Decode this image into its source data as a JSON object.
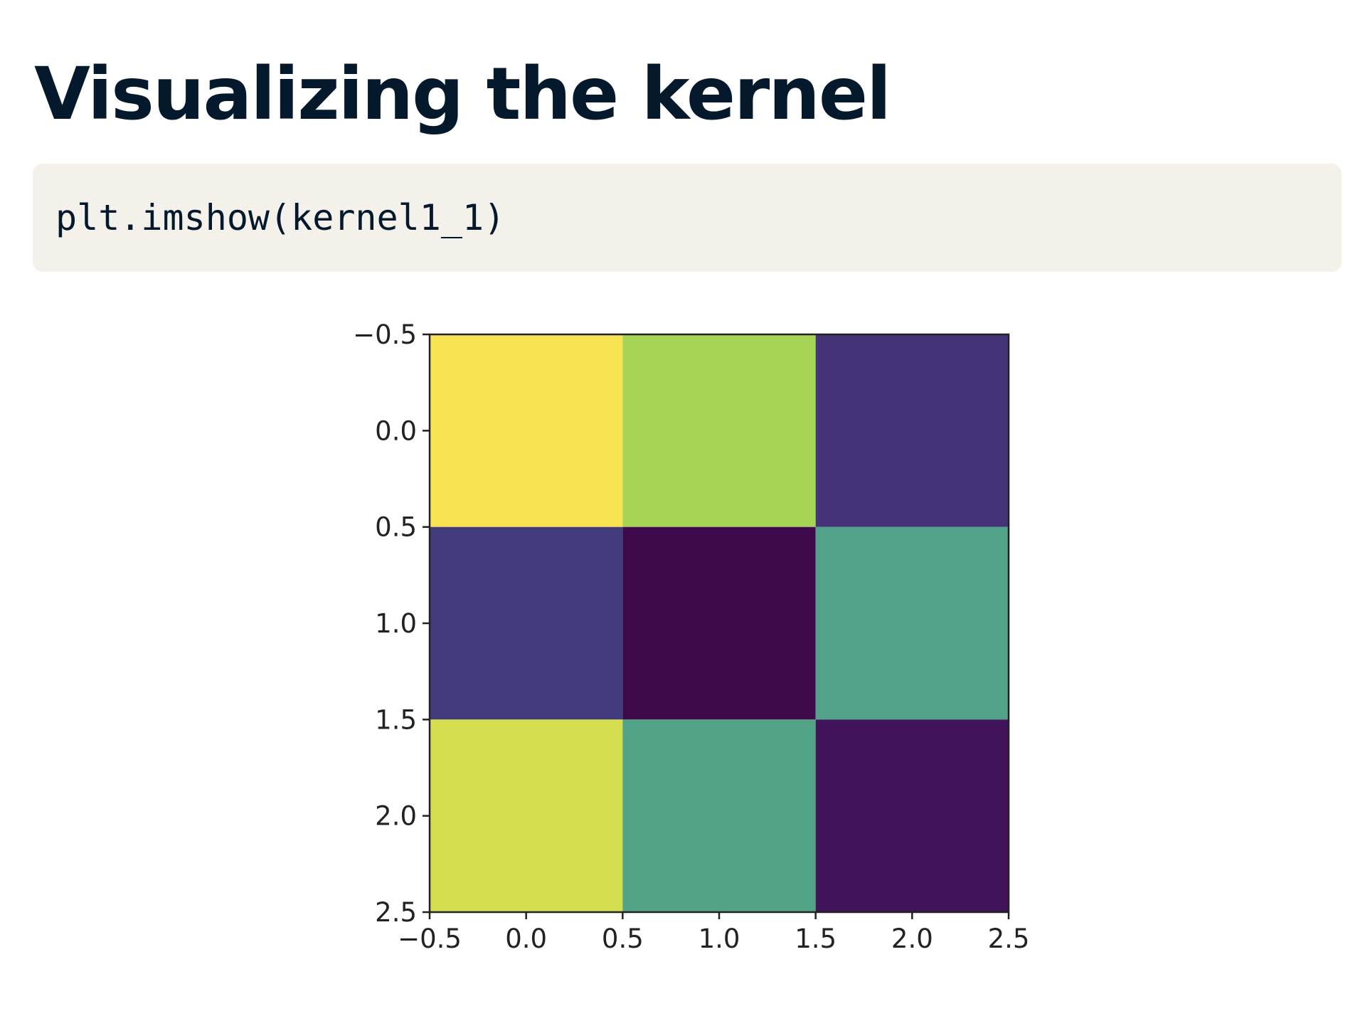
{
  "slide": {
    "title": "Visualizing the kernel"
  },
  "code": {
    "line": "plt.imshow(kernel1_1)"
  },
  "chart_data": {
    "type": "heatmap",
    "title": "",
    "xlabel": "",
    "ylabel": "",
    "colormap": "viridis",
    "xlim": [
      -0.5,
      2.5
    ],
    "ylim": [
      2.5,
      -0.5
    ],
    "x_ticks": [
      "−0.5",
      "0.0",
      "0.5",
      "1.0",
      "1.5",
      "2.0",
      "2.5"
    ],
    "y_ticks": [
      "−0.5",
      "0.0",
      "0.5",
      "1.0",
      "1.5",
      "2.0",
      "2.5"
    ],
    "x_tick_values": [
      -0.5,
      0.0,
      0.5,
      1.0,
      1.5,
      2.0,
      2.5
    ],
    "y_tick_values": [
      -0.5,
      0.0,
      0.5,
      1.0,
      1.5,
      2.0,
      2.5
    ],
    "rows": [
      [
        1.0,
        0.8,
        0.1
      ],
      [
        0.12,
        0.0,
        0.55
      ],
      [
        0.92,
        0.55,
        0.03
      ]
    ],
    "colors": [
      [
        "#f8e353",
        "#a6d556",
        "#443477"
      ],
      [
        "#433c7c",
        "#3e0a4c",
        "#51a288"
      ],
      [
        "#d4de4f",
        "#51a586",
        "#41135a"
      ]
    ],
    "grid": false,
    "legend": "none"
  }
}
